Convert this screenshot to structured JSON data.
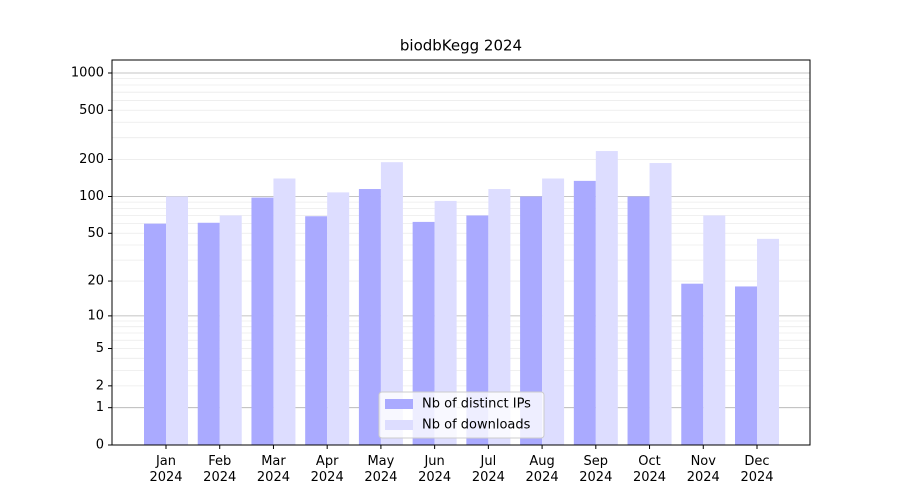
{
  "chart_data": {
    "type": "bar",
    "title": "biodbKegg 2024",
    "categories": [
      "Jan\n2024",
      "Feb\n2024",
      "Mar\n2024",
      "Apr\n2024",
      "May\n2024",
      "Jun\n2024",
      "Jul\n2024",
      "Aug\n2024",
      "Sep\n2024",
      "Oct\n2024",
      "Nov\n2024",
      "Dec\n2024"
    ],
    "series": [
      {
        "name": "Nb of distinct IPs",
        "color": "#aaaaff",
        "values": [
          60,
          61,
          98,
          69,
          115,
          62,
          70,
          100,
          134,
          100,
          19,
          18
        ]
      },
      {
        "name": "Nb of downloads",
        "color": "#ddddff",
        "values": [
          100,
          70,
          140,
          108,
          190,
          92,
          115,
          140,
          234,
          187,
          70,
          45
        ]
      }
    ],
    "yscale": "symlog",
    "ylim": [
      0,
      1273
    ],
    "yticks": [
      0,
      1,
      2,
      5,
      10,
      20,
      50,
      100,
      200,
      500,
      1000
    ],
    "ygrid_major": [
      1,
      10,
      100,
      1000
    ],
    "ygrid_minor": [
      2,
      3,
      4,
      5,
      6,
      7,
      8,
      9,
      20,
      30,
      40,
      50,
      60,
      70,
      80,
      90,
      200,
      300,
      400,
      500,
      600,
      700,
      800,
      900
    ],
    "legend": "lower center"
  }
}
